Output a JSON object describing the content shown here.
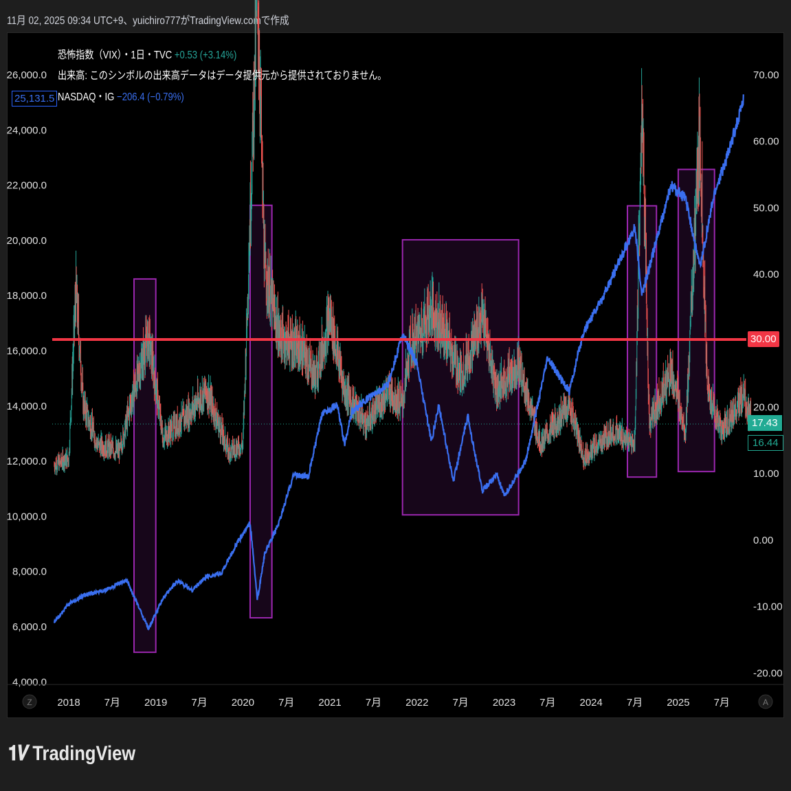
{
  "header": {
    "caption": "11月 02, 2025 09:34 UTC+9、yuichiro777がTradingView.comで作成"
  },
  "legend": {
    "vix_title": "恐怖指数（VIX）・1日・TVC",
    "vix_change": "+0.53 (+3.14%)",
    "volume_note": "出来高: このシンボルの出来高データはデータ提供元から提供されておりません。",
    "nasdaq_title": "NASDAQ・IG",
    "nasdaq_change": "−206.4 (−0.79%)"
  },
  "colors": {
    "nasdaq": "#3a6ff0",
    "vix_up": "#26a69a",
    "vix_down": "#ef5350",
    "hline": "#f23645",
    "box": "#9c27b0",
    "vix_label": "#22ab94"
  },
  "left_axis": {
    "ticks": [
      "26,000.0",
      "24,000.0",
      "22,000.0",
      "20,000.0",
      "18,000.0",
      "16,000.0",
      "14,000.0",
      "12,000.0",
      "10,000.0",
      "8,000.0",
      "6,000.0",
      "4,000.0"
    ],
    "current": "25,131.5"
  },
  "right_axis": {
    "ticks": [
      "70.00",
      "60.00",
      "50.00",
      "40.00",
      "20.00",
      "10.00",
      "0.00",
      "-10.00",
      "-20.00"
    ],
    "hline_label": "30.00",
    "last": "17.43",
    "prev": "16.44"
  },
  "time_axis": {
    "labels": [
      "2018",
      "7月",
      "2019",
      "7月",
      "2020",
      "7月",
      "2021",
      "7月",
      "2022",
      "7月",
      "2023",
      "7月",
      "2024",
      "7月",
      "2025",
      "7月"
    ],
    "left_btn": "Z",
    "right_btn": "A"
  },
  "chart_data": {
    "type": "line",
    "nasdaq": [
      [
        "2017-11",
        6150
      ],
      [
        "2018-01",
        6800
      ],
      [
        "2018-03",
        7100
      ],
      [
        "2018-06",
        7300
      ],
      [
        "2018-09",
        7650
      ],
      [
        "2018-12",
        5900
      ],
      [
        "2019-02",
        7000
      ],
      [
        "2019-04",
        7650
      ],
      [
        "2019-06",
        7300
      ],
      [
        "2019-08",
        7800
      ],
      [
        "2019-10",
        7900
      ],
      [
        "2019-12",
        8900
      ],
      [
        "2020-02",
        9750
      ],
      [
        "2020-03",
        6950
      ],
      [
        "2020-04",
        8600
      ],
      [
        "2020-06",
        9750
      ],
      [
        "2020-08",
        11500
      ],
      [
        "2020-10",
        11400
      ],
      [
        "2020-12",
        13750
      ],
      [
        "2021-02",
        14000
      ],
      [
        "2021-03",
        12600
      ],
      [
        "2021-04",
        13750
      ],
      [
        "2021-06",
        14200
      ],
      [
        "2021-09",
        14750
      ],
      [
        "2021-11",
        16600
      ],
      [
        "2022-01",
        15500
      ],
      [
        "2022-03",
        12700
      ],
      [
        "2022-04",
        14000
      ],
      [
        "2022-06",
        11250
      ],
      [
        "2022-08",
        13600
      ],
      [
        "2022-10",
        10900
      ],
      [
        "2022-12",
        11500
      ],
      [
        "2023-01",
        10700
      ],
      [
        "2023-04",
        12000
      ],
      [
        "2023-07",
        15700
      ],
      [
        "2023-10",
        14500
      ],
      [
        "2023-12",
        16700
      ],
      [
        "2024-03",
        18100
      ],
      [
        "2024-07",
        20470
      ],
      [
        "2024-08",
        18000
      ],
      [
        "2024-12",
        21960
      ],
      [
        "2025-02",
        21500
      ],
      [
        "2025-04",
        19000
      ],
      [
        "2025-06",
        21700
      ],
      [
        "2025-08",
        23200
      ],
      [
        "2025-10",
        25100
      ]
    ],
    "vix": [
      [
        "2017-11",
        11
      ],
      [
        "2018-01",
        12
      ],
      [
        "2018-02",
        37
      ],
      [
        "2018-03",
        20
      ],
      [
        "2018-05",
        14
      ],
      [
        "2018-08",
        13
      ],
      [
        "2018-10",
        22
      ],
      [
        "2018-12",
        30
      ],
      [
        "2019-02",
        15
      ],
      [
        "2019-05",
        18
      ],
      [
        "2019-08",
        22
      ],
      [
        "2019-11",
        13
      ],
      [
        "2020-01",
        14
      ],
      [
        "2020-03",
        82
      ],
      [
        "2020-04",
        40
      ],
      [
        "2020-06",
        30
      ],
      [
        "2020-09",
        28
      ],
      [
        "2020-11",
        24
      ],
      [
        "2021-01",
        33
      ],
      [
        "2021-03",
        22
      ],
      [
        "2021-06",
        17
      ],
      [
        "2021-09",
        22
      ],
      [
        "2021-11",
        20
      ],
      [
        "2021-12",
        28
      ],
      [
        "2022-03",
        34
      ],
      [
        "2022-05",
        30
      ],
      [
        "2022-07",
        24
      ],
      [
        "2022-10",
        33
      ],
      [
        "2022-12",
        22
      ],
      [
        "2023-03",
        26
      ],
      [
        "2023-06",
        14
      ],
      [
        "2023-10",
        20
      ],
      [
        "2023-12",
        12
      ],
      [
        "2024-04",
        16
      ],
      [
        "2024-07",
        14
      ],
      [
        "2024-08",
        65
      ],
      [
        "2024-09",
        17
      ],
      [
        "2024-12",
        25
      ],
      [
        "2025-02",
        16
      ],
      [
        "2025-04",
        60
      ],
      [
        "2025-05",
        22
      ],
      [
        "2025-07",
        16
      ],
      [
        "2025-10",
        21
      ],
      [
        "2025-11",
        17.43
      ]
    ],
    "hline": 30,
    "boxes": [
      [
        "2018-10",
        "2019-01",
        18580,
        5050
      ],
      [
        "2020-02",
        "2020-05",
        21250,
        6300
      ],
      [
        "2021-11",
        "2023-03",
        20000,
        10030
      ],
      [
        "2024-06",
        "2024-10",
        21230,
        11400
      ],
      [
        "2025-01",
        "2025-06",
        22550,
        11600
      ]
    ],
    "left_ylim": [
      4000,
      27000
    ],
    "right_ylim": [
      -20,
      70
    ]
  },
  "brand": {
    "logo_text": "TradingView"
  }
}
